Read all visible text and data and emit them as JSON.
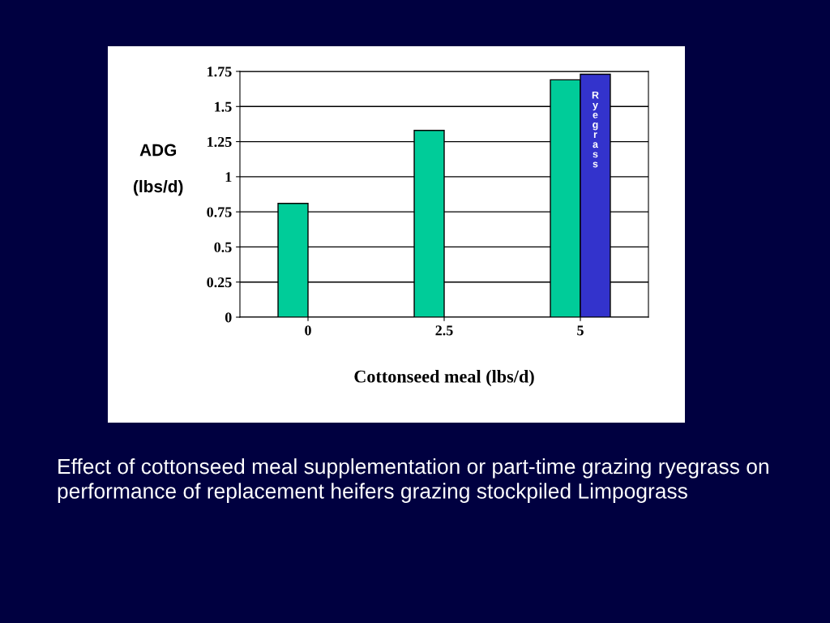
{
  "chart_data": {
    "type": "bar",
    "xlabel": "Cottonseed meal (lbs/d)",
    "ylabel": "ADG\n\n(lbs/d)",
    "categories": [
      "0",
      "2.5",
      "5"
    ],
    "series": [
      {
        "color": "#00cc99",
        "values": [
          0.81,
          1.33,
          1.69
        ]
      },
      {
        "name": "Ryegrass",
        "color": "#3333cc",
        "values": [
          null,
          null,
          1.73
        ]
      }
    ],
    "ylim": [
      0,
      1.75
    ],
    "yticks": [
      0,
      0.25,
      0.5,
      0.75,
      1,
      1.25,
      1.5,
      1.75
    ],
    "grid": "y",
    "legend": false,
    "annotations": [
      "Effect of cottonseed meal supplementation or part-time grazing ryegrass on performance of replacement heifers grazing stockpiled Limpograss"
    ]
  }
}
